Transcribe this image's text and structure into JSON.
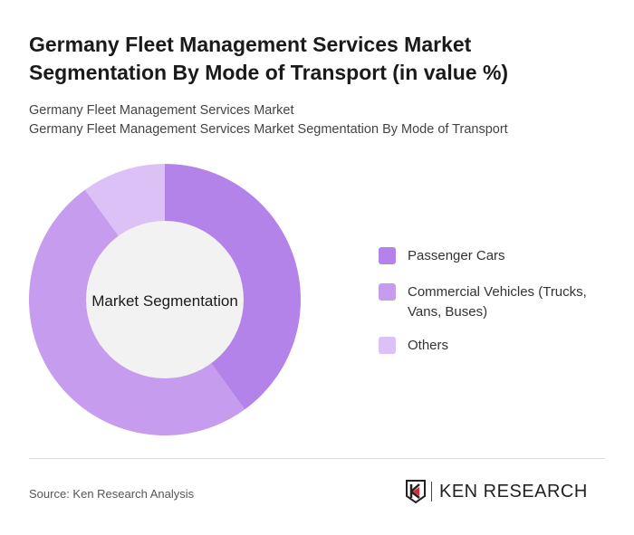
{
  "title": "Germany Fleet Management Services Market Segmentation By Mode of Transport (in value %)",
  "subtitle_1": "Germany Fleet Management Services Market",
  "subtitle_2": "Germany Fleet Management Services Market Segmentation By Mode of Transport",
  "chart_data": {
    "type": "pie",
    "donut": true,
    "center_label": "Market Segmentation",
    "categories": [
      "Passenger Cars",
      "Commercial Vehicles (Trucks, Vans, Buses)",
      "Others"
    ],
    "values": [
      40,
      50,
      10
    ],
    "colors": [
      "#b383ea",
      "#c69cee",
      "#dcc1f6"
    ],
    "legend_position": "right"
  },
  "footer": {
    "source": "Source: Ken Research Analysis",
    "logo_text": "KEN RESEARCH"
  }
}
